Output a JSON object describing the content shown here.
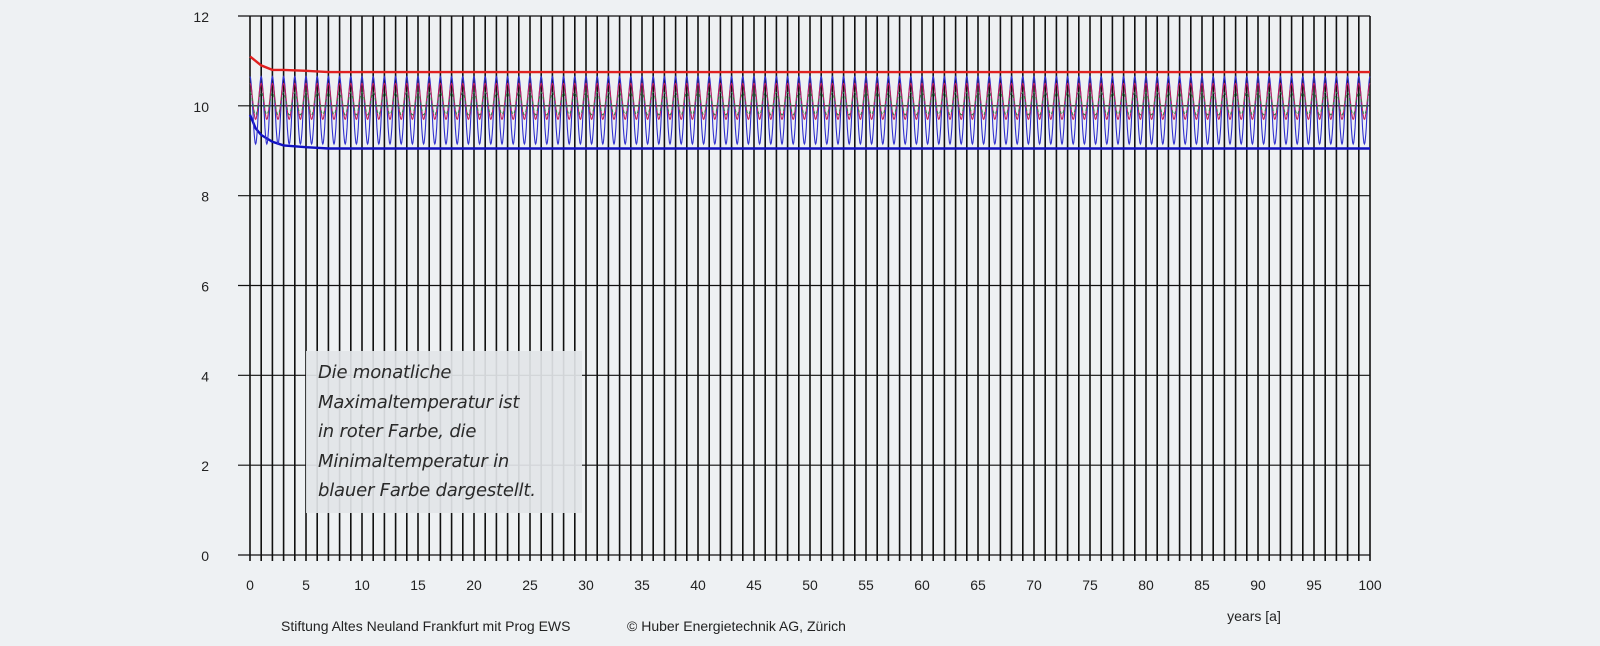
{
  "chart_data": {
    "type": "line",
    "title": "",
    "xlabel": "years [a]",
    "ylabel": "",
    "xlim": [
      0,
      100
    ],
    "ylim": [
      0,
      12
    ],
    "x_ticks": [
      0,
      5,
      10,
      15,
      20,
      25,
      30,
      35,
      40,
      45,
      50,
      55,
      60,
      65,
      70,
      75,
      80,
      85,
      90,
      95,
      100
    ],
    "y_ticks": [
      0,
      2,
      4,
      6,
      8,
      10,
      12
    ],
    "grid": true,
    "vertical_grid_step_years": 1,
    "series": [
      {
        "color": "#e02020",
        "style": "envelope",
        "x": [
          0,
          0.5,
          1,
          2,
          3,
          5,
          7,
          100
        ],
        "values": [
          11.1,
          11.0,
          10.9,
          10.8,
          10.8,
          10.78,
          10.75,
          10.75
        ]
      },
      {
        "color": "#1010c0",
        "style": "envelope",
        "x": [
          0,
          0.5,
          1,
          2,
          3,
          5,
          7,
          100
        ],
        "values": [
          9.8,
          9.5,
          9.35,
          9.2,
          9.12,
          9.08,
          9.05,
          9.05
        ]
      },
      {
        "color": "#3030d0",
        "style": "oscillating",
        "x_start": 0,
        "x_end": 100,
        "period_years": 1,
        "values": [
          10.65,
          9.15
        ]
      },
      {
        "color": "#c02060",
        "style": "oscillating",
        "x_start": 0,
        "x_end": 100,
        "period_years": 1,
        "values": [
          10.5,
          9.7
        ]
      },
      {
        "color": "#2a8a4a",
        "style": "oscillating-dashed",
        "x_start": 0,
        "x_end": 100,
        "period_years": 1,
        "values": [
          10.3,
          9.8
        ]
      }
    ]
  },
  "annotation": {
    "lines": [
      "Die monatliche",
      "Maximaltemperatur ist",
      "in roter Farbe, die",
      "Minimaltemperatur in",
      "blauer Farbe dargestellt."
    ]
  },
  "footer": {
    "project": "Stiftung Altes Neuland Frankfurt mit Prog EWS",
    "copyright": "© Huber Energietechnik AG, Zürich"
  },
  "colors": {
    "background": "#eef1f3",
    "grid": "#111111"
  }
}
